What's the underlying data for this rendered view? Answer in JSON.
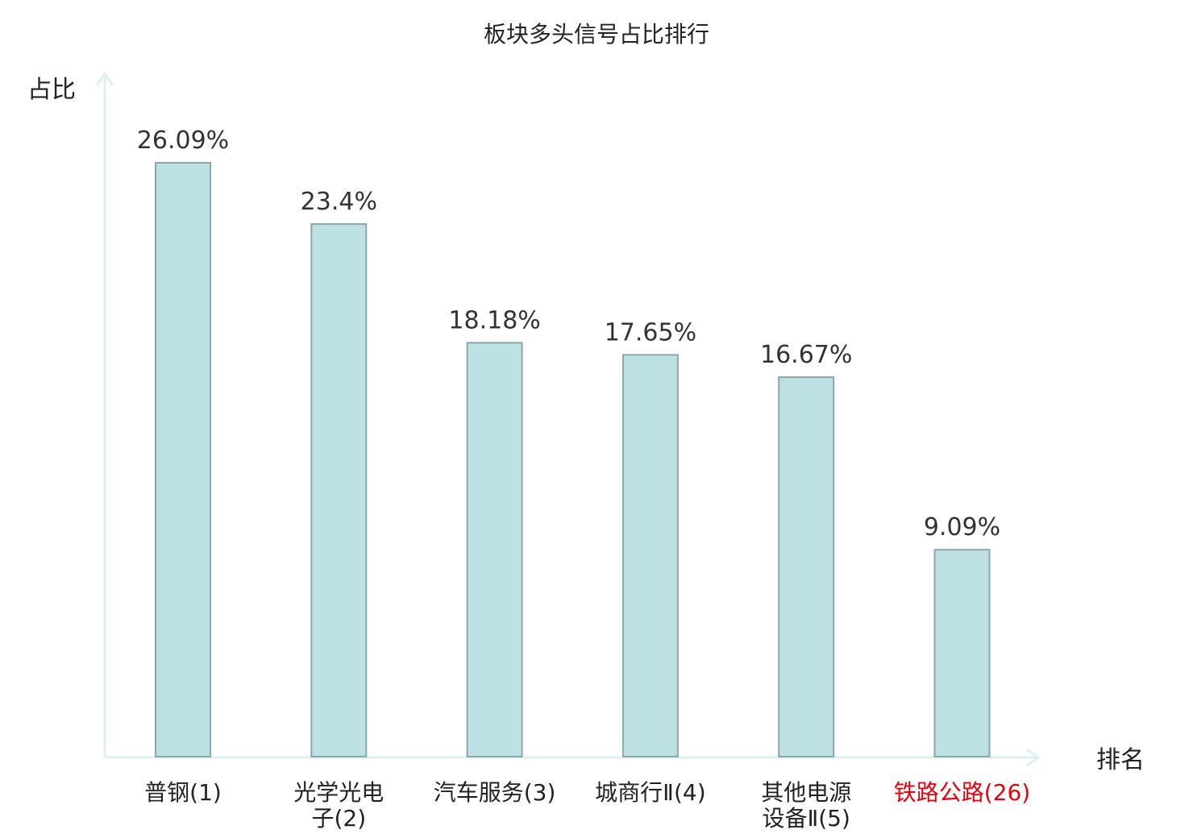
{
  "chart_data": {
    "type": "bar",
    "title": "板块多头信号占比排行",
    "ylabel": "占比",
    "xlabel": "排名",
    "categories": [
      "普钢(1)",
      "光学光电子(2)",
      "汽车服务(3)",
      "城商行Ⅱ(4)",
      "其他电源设备Ⅱ(5)",
      "铁路公路(26)"
    ],
    "category_lines": [
      [
        "普钢(1)"
      ],
      [
        "光学光电",
        "子(2)"
      ],
      [
        "汽车服务(3)"
      ],
      [
        "城商行Ⅱ(4)"
      ],
      [
        "其他电源",
        "设备Ⅱ(5)"
      ],
      [
        "铁路公路(26)"
      ]
    ],
    "values": [
      26.09,
      23.4,
      18.18,
      17.65,
      16.67,
      9.09
    ],
    "value_labels": [
      "26.09%",
      "23.4%",
      "18.18%",
      "17.65%",
      "16.67%",
      "9.09%"
    ],
    "highlight_index": 5,
    "grid": false,
    "colors": {
      "bar_fill": "#bde0e2",
      "bar_stroke": "#8aa7aa",
      "axis": "#dff0ee",
      "highlight_text": "#e8000b",
      "label_text": "#222222"
    }
  }
}
